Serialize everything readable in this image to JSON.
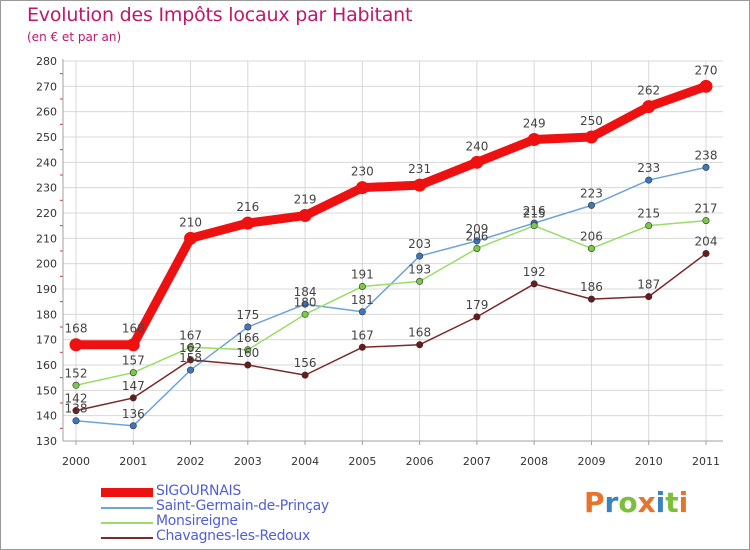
{
  "title": "Evolution des Impôts locaux par Habitant",
  "subtitle": "(en € et par an)",
  "colors": {
    "title": "#c0176c",
    "grid": "#d8d8d8",
    "axis": "#a0a0a0",
    "legend_text": "#4f5fd6"
  },
  "chart_data": {
    "type": "line",
    "title": "Evolution des Impôts locaux par Habitant",
    "subtitle": "(en € et par an)",
    "xlabel": "",
    "ylabel": "",
    "categories": [
      "2000",
      "2001",
      "2002",
      "2003",
      "2004",
      "2005",
      "2006",
      "2007",
      "2008",
      "2009",
      "2010",
      "2011"
    ],
    "ylim": [
      130,
      280
    ],
    "yticks": [
      130,
      140,
      150,
      160,
      170,
      180,
      190,
      200,
      210,
      220,
      230,
      240,
      250,
      260,
      270,
      280
    ],
    "grid": true,
    "legend_position": "bottom-left",
    "series": [
      {
        "name": "SIGOURNAIS",
        "color": "#ee1111",
        "marker": "#ee1111",
        "thick": true,
        "values": [
          168,
          168,
          210,
          216,
          219,
          230,
          231,
          240,
          249,
          250,
          262,
          270
        ],
        "labels": [
          "168",
          "168",
          "210",
          "216",
          "219",
          "230",
          "231",
          "240",
          "249",
          "250",
          "262",
          "270"
        ]
      },
      {
        "name": "Saint-Germain-de-Prinçay",
        "color": "#6fa4d8",
        "marker": "#3c78c0",
        "thick": false,
        "values": [
          138,
          136,
          158,
          175,
          184,
          181,
          203,
          209,
          216,
          223,
          233,
          238
        ],
        "labels": [
          "138",
          "136",
          "158",
          "175",
          "184",
          "181",
          "203",
          "209",
          "216",
          "223",
          "233",
          "238"
        ]
      },
      {
        "name": "Monsireigne",
        "color": "#99dd66",
        "marker": "#77cc44",
        "thick": false,
        "values": [
          152,
          157,
          167,
          166,
          180,
          191,
          193,
          206,
          215,
          206,
          215,
          217
        ],
        "labels": [
          "152",
          "157",
          "167",
          "166",
          "180",
          "191",
          "193",
          "206",
          "215",
          "206",
          "215",
          "217"
        ]
      },
      {
        "name": "Chavagnes-les-Redoux",
        "color": "#7a2a2a",
        "marker": "#6a1a1a",
        "thick": false,
        "values": [
          142,
          147,
          162,
          160,
          156,
          167,
          168,
          179,
          192,
          186,
          187,
          204
        ],
        "labels": [
          "142",
          "147",
          "162",
          "160",
          "156",
          "167",
          "168",
          "179",
          "192",
          "186",
          "187",
          "204"
        ]
      }
    ]
  },
  "legend": [
    {
      "label": "SIGOURNAIS",
      "color": "#ee1111"
    },
    {
      "label": "Saint-Germain-de-Prinçay",
      "color": "#6fa4d8"
    },
    {
      "label": "Monsireigne",
      "color": "#99dd66"
    },
    {
      "label": "Chavagnes-les-Redoux",
      "color": "#7a2a2a"
    }
  ],
  "logo": {
    "text": "Proxiti",
    "letters": [
      {
        "ch": "P",
        "color": "#e8732a"
      },
      {
        "ch": "r",
        "color": "#3b82c4"
      },
      {
        "ch": "o",
        "color": "#7bbf3a"
      },
      {
        "ch": "x",
        "color": "#e8732a"
      },
      {
        "ch": "i",
        "color": "#3b82c4"
      },
      {
        "ch": "t",
        "color": "#7bbf3a"
      },
      {
        "ch": "i",
        "color": "#e8732a"
      }
    ]
  }
}
